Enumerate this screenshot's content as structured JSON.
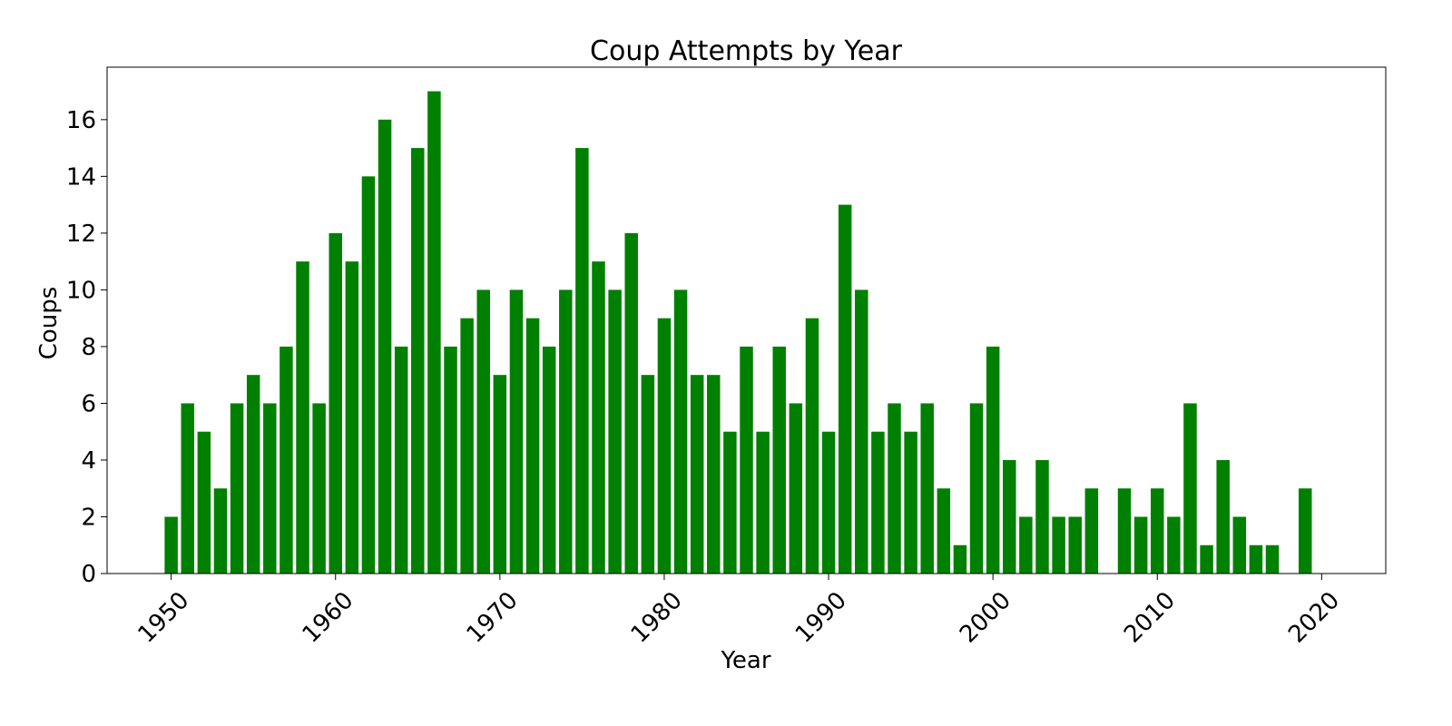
{
  "chart_data": {
    "type": "bar",
    "title": "Coup Attempts by Year",
    "xlabel": "Year",
    "ylabel": "Coups",
    "x": [
      1950,
      1951,
      1952,
      1953,
      1954,
      1955,
      1956,
      1957,
      1958,
      1959,
      1960,
      1961,
      1962,
      1963,
      1964,
      1965,
      1966,
      1967,
      1968,
      1969,
      1970,
      1971,
      1972,
      1973,
      1974,
      1975,
      1976,
      1977,
      1978,
      1979,
      1980,
      1981,
      1982,
      1983,
      1984,
      1985,
      1986,
      1987,
      1988,
      1989,
      1990,
      1991,
      1992,
      1993,
      1994,
      1995,
      1996,
      1997,
      1998,
      1999,
      2000,
      2001,
      2002,
      2003,
      2004,
      2005,
      2006,
      2008,
      2009,
      2010,
      2011,
      2012,
      2013,
      2014,
      2015,
      2016,
      2017,
      2019
    ],
    "values": [
      2,
      6,
      5,
      3,
      6,
      7,
      6,
      8,
      11,
      6,
      12,
      11,
      14,
      16,
      8,
      15,
      17,
      8,
      9,
      10,
      7,
      10,
      9,
      8,
      10,
      15,
      11,
      10,
      12,
      7,
      9,
      10,
      7,
      7,
      5,
      8,
      5,
      8,
      6,
      9,
      5,
      13,
      10,
      5,
      6,
      5,
      6,
      3,
      1,
      6,
      8,
      4,
      2,
      4,
      2,
      2,
      3,
      3,
      2,
      3,
      2,
      6,
      1,
      4,
      2,
      1,
      1,
      3
    ],
    "xlim": [
      1946.1,
      2023.9
    ],
    "ylim": [
      0,
      17.85
    ],
    "xticks": [
      1950,
      1960,
      1970,
      1980,
      1990,
      2000,
      2010,
      2020
    ],
    "xtick_labels": [
      "1950",
      "1960",
      "1970",
      "1980",
      "1990",
      "2000",
      "2010",
      "2020"
    ],
    "yticks": [
      0,
      2,
      4,
      6,
      8,
      10,
      12,
      14,
      16
    ],
    "ytick_labels": [
      "0",
      "2",
      "4",
      "6",
      "8",
      "10",
      "12",
      "14",
      "16"
    ],
    "bar_color": "#008000",
    "grid": false
  }
}
